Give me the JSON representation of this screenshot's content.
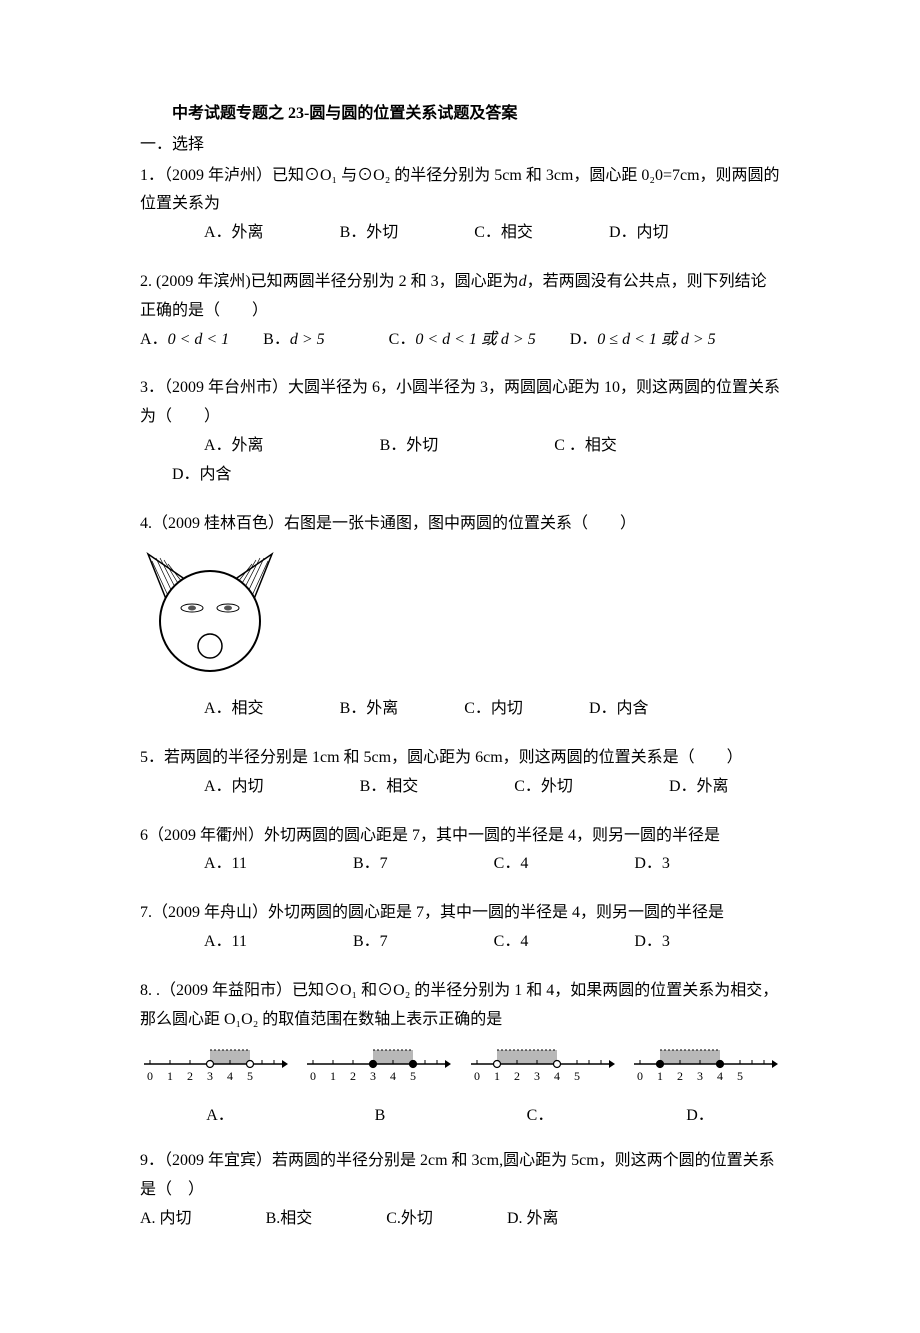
{
  "title": "中考试题专题之 23-圆与圆的位置关系试题及答案",
  "section1": "一．选择",
  "q1": {
    "text": "1．（2009 年泸州）已知⊙O₁ 与⊙O₂ 的半径分别为 5cm 和 3cm，圆心距 0₂0=7cm，则两圆的位置关系为",
    "optA": "A．外离",
    "optB": "B．外切",
    "optC": "C．相交",
    "optD": "D．内切"
  },
  "q2": {
    "text1": "2. (2009 年滨州)已知两圆半径分别为 2 和 3，圆心距为",
    "text2": "，若两圆没有公共点，则下列结论正确的是（　　）",
    "d": "d",
    "optA": "A．",
    "optA2": "0 < d < 1",
    "optB": "B．",
    "optB2": "d > 5",
    "optC": "C．",
    "optC2": "0 < d < 1 或 d > 5",
    "optD": "D．",
    "optD2": "0 ≤ d < 1 或 d > 5"
  },
  "q3": {
    "text": "3．（2009 年台州市）大圆半径为 6，小圆半径为 3，两圆圆心距为 10，则这两圆的位置关系为（　　）",
    "optA": "A．外离",
    "optB": "B．外切",
    "optC": "C ．相交",
    "optD": "D．内含"
  },
  "q4": {
    "text": "4.（2009 桂林百色）右图是一张卡通图，图中两圆的位置关系（　　）",
    "optA": "A．相交",
    "optB": "B．外离",
    "optC": "C．内切",
    "optD": "D．内含"
  },
  "q5": {
    "text": "5．若两圆的半径分别是 1cm 和 5cm，圆心距为 6cm，则这两圆的位置关系是（　　）",
    "optA": "A．内切",
    "optB": "B．相交",
    "optC": "C．外切",
    "optD": "D．外离"
  },
  "q6": {
    "text": "6（2009 年衢州）外切两圆的圆心距是 7，其中一圆的半径是 4，则另一圆的半径是",
    "optA": "A．11",
    "optB": "B．7",
    "optC": "C．4",
    "optD": "D．3"
  },
  "q7": {
    "text": "7.（2009 年舟山）外切两圆的圆心距是 7，其中一圆的半径是 4，则另一圆的半径是",
    "optA": "A．11",
    "optB": "B．7",
    "optC": "C．4",
    "optD": "D．3"
  },
  "q8": {
    "text": "8. .（2009 年益阳市）已知⊙O₁ 和⊙O₂ 的半径分别为 1 和 4，如果两圆的位置关系为相交，那么圆心距 O₁O₂ 的取值范围在数轴上表示正确的是",
    "labels": [
      "0",
      "1",
      "2",
      "3",
      "4",
      "5"
    ],
    "optA": "A．",
    "optB": "B",
    "optC": "C．",
    "optD": "D．",
    "fillColor": "#b8b8b8",
    "lineColor": "#000000",
    "options": {
      "A": {
        "start": 3,
        "end": 5,
        "startOpen": true,
        "endOpen": true
      },
      "B": {
        "start": 3,
        "end": 5,
        "startOpen": false,
        "endOpen": false
      },
      "C": {
        "start": 1,
        "end": 4,
        "startOpen": true,
        "endOpen": true
      },
      "D": {
        "start": 1,
        "end": 4,
        "startOpen": false,
        "endOpen": false
      }
    }
  },
  "q9": {
    "text": "9．（2009 年宜宾）若两圆的半径分别是 2cm 和 3cm,圆心距为 5cm，则这两个圆的位置关系是（　）",
    "optA": "A. 内切",
    "optB": "B.相交",
    "optC": "C.外切",
    "optD": "D. 外离"
  },
  "cartoon": {
    "bigR": 50,
    "smallR": 12,
    "eyeRx": 10,
    "eyeRy": 3,
    "strokeColor": "#000000",
    "fillColor": "#ffffff"
  }
}
